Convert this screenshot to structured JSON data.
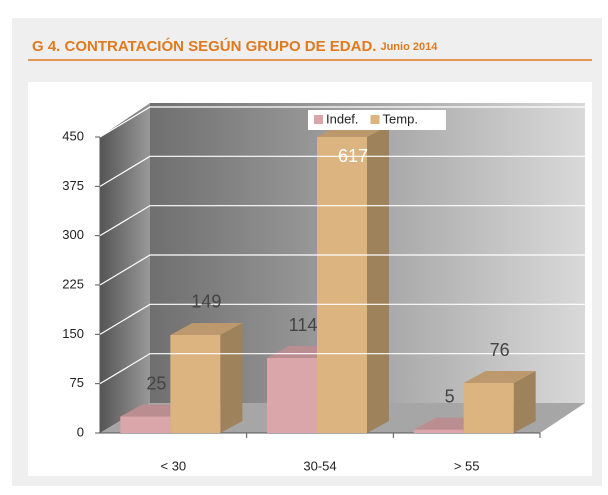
{
  "chart_data": {
    "type": "bar3d",
    "title": "G 4. CONTRATACIÓN  SEGÚN GRUPO DE EDAD.",
    "subtitle": "Junio 2014",
    "categories": [
      "< 30",
      "30-54",
      "> 55"
    ],
    "series": [
      {
        "name": "Indef.",
        "color": "#dba6aa",
        "values": [
          25,
          114,
          5
        ]
      },
      {
        "name": "Temp.",
        "color": "#dcb47f",
        "values": [
          149,
          617,
          76
        ]
      }
    ],
    "ylim": [
      0,
      450
    ],
    "yticks": [
      0,
      75,
      150,
      225,
      300,
      375,
      450
    ],
    "grid": true,
    "legend": "top"
  }
}
